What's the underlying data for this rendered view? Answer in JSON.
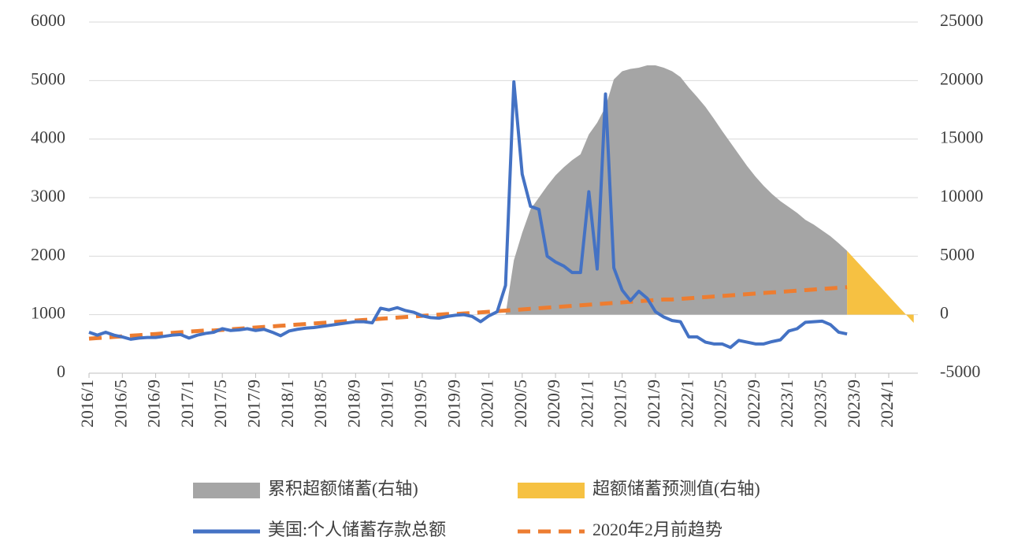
{
  "chart_data": {
    "type": "line",
    "categories": [
      "2016/1",
      null,
      null,
      null,
      "2016/5",
      null,
      null,
      null,
      "2016/9",
      null,
      null,
      null,
      "2017/1",
      null,
      null,
      null,
      "2017/5",
      null,
      null,
      null,
      "2017/9",
      null,
      null,
      null,
      "2018/1",
      null,
      null,
      null,
      "2018/5",
      null,
      null,
      null,
      "2018/9",
      null,
      null,
      null,
      "2019/1",
      null,
      null,
      null,
      "2019/5",
      null,
      null,
      null,
      "2019/9",
      null,
      null,
      null,
      "2020/1",
      null,
      null,
      null,
      "2020/5",
      null,
      null,
      null,
      "2020/9",
      null,
      null,
      null,
      "2021/1",
      null,
      null,
      null,
      "2021/5",
      null,
      null,
      null,
      "2021/9",
      null,
      null,
      null,
      "2022/1",
      null,
      null,
      null,
      "2022/5",
      null,
      null,
      null,
      "2022/9",
      null,
      null,
      null,
      "2023/1",
      null,
      null,
      null,
      "2023/5",
      null,
      null,
      null,
      "2023/9",
      null,
      null,
      null,
      "2024/1",
      null,
      null,
      null
    ],
    "ylim": [
      0,
      6000
    ],
    "yticks": [
      0,
      1000,
      2000,
      3000,
      4000,
      5000,
      6000
    ],
    "y2lim": [
      -5000,
      25000
    ],
    "y2ticks": [
      -5000,
      0,
      5000,
      10000,
      15000,
      20000,
      25000
    ],
    "grid": true,
    "series": [
      {
        "name": "累积超额储蓄(右轴)",
        "type": "area",
        "axis": "y2",
        "color": "#a5a5a5",
        "values": [
          null,
          null,
          null,
          null,
          null,
          null,
          null,
          null,
          null,
          null,
          null,
          null,
          null,
          null,
          null,
          null,
          null,
          null,
          null,
          null,
          null,
          null,
          null,
          null,
          null,
          null,
          null,
          null,
          null,
          null,
          null,
          null,
          null,
          null,
          null,
          null,
          null,
          null,
          null,
          null,
          null,
          null,
          null,
          null,
          null,
          null,
          null,
          null,
          null,
          null,
          0,
          4640,
          7000,
          9000,
          10000,
          11000,
          11900,
          12600,
          13200,
          13700,
          15400,
          16400,
          17750,
          20100,
          20800,
          21000,
          21100,
          21300,
          21300,
          21100,
          20800,
          20300,
          19400,
          18600,
          17750,
          16750,
          15700,
          14700,
          13700,
          12700,
          11800,
          11000,
          10300,
          9700,
          9200,
          8700,
          8100,
          7700,
          7200,
          6700,
          6100,
          5450,
          null,
          null,
          null,
          null,
          null,
          null,
          null,
          null
        ]
      },
      {
        "name": "超额储蓄预测值(右轴)",
        "type": "area",
        "axis": "y2",
        "color": "#f6c142",
        "values": [
          null,
          null,
          null,
          null,
          null,
          null,
          null,
          null,
          null,
          null,
          null,
          null,
          null,
          null,
          null,
          null,
          null,
          null,
          null,
          null,
          null,
          null,
          null,
          null,
          null,
          null,
          null,
          null,
          null,
          null,
          null,
          null,
          null,
          null,
          null,
          null,
          null,
          null,
          null,
          null,
          null,
          null,
          null,
          null,
          null,
          null,
          null,
          null,
          null,
          null,
          null,
          null,
          null,
          null,
          null,
          null,
          null,
          null,
          null,
          null,
          null,
          null,
          null,
          null,
          null,
          null,
          null,
          null,
          null,
          null,
          null,
          null,
          null,
          null,
          null,
          null,
          null,
          null,
          null,
          null,
          null,
          null,
          null,
          null,
          null,
          null,
          null,
          null,
          null,
          null,
          null,
          5450,
          4680,
          3910,
          3140,
          2370,
          1600,
          830,
          60,
          -700
        ]
      },
      {
        "name": "美国:个人储蓄存款总额",
        "type": "line",
        "color": "#4472c4",
        "values": [
          700,
          650,
          700,
          650,
          620,
          580,
          600,
          610,
          610,
          630,
          650,
          660,
          600,
          650,
          680,
          700,
          760,
          730,
          740,
          760,
          730,
          750,
          700,
          640,
          720,
          750,
          770,
          780,
          800,
          820,
          840,
          860,
          880,
          880,
          860,
          1110,
          1080,
          1120,
          1070,
          1040,
          980,
          950,
          940,
          970,
          990,
          1000,
          970,
          880,
          980,
          1050,
          1500,
          4980,
          3400,
          2850,
          2800,
          2000,
          1900,
          1830,
          1720,
          1720,
          3100,
          1780,
          4770,
          1800,
          1420,
          1240,
          1400,
          1280,
          1050,
          960,
          900,
          880,
          620,
          620,
          530,
          500,
          500,
          440,
          560,
          530,
          500,
          500,
          540,
          570,
          720,
          760,
          870,
          880,
          890,
          830,
          700,
          670,
          null,
          null,
          null,
          null,
          null,
          null,
          null,
          null
        ]
      },
      {
        "name": "2020年2月前趋势",
        "type": "line",
        "dashed": true,
        "color": "#ed7d31",
        "values": [
          590,
          600,
          610,
          620,
          630,
          640,
          650,
          660,
          670,
          680,
          690,
          700,
          710,
          720,
          730,
          730,
          740,
          750,
          760,
          770,
          780,
          790,
          800,
          810,
          820,
          830,
          840,
          850,
          860,
          870,
          880,
          890,
          900,
          910,
          920,
          930,
          940,
          950,
          960,
          970,
          980,
          990,
          1000,
          1010,
          1010,
          1020,
          1030,
          1040,
          1050,
          1060,
          1070,
          1080,
          1090,
          1100,
          1110,
          1120,
          1130,
          1140,
          1150,
          1160,
          1170,
          1180,
          1190,
          1200,
          1210,
          1220,
          1230,
          1240,
          1250,
          1260,
          1260,
          1270,
          1280,
          1290,
          1300,
          1310,
          1320,
          1330,
          1340,
          1350,
          1360,
          1370,
          1380,
          1390,
          1400,
          1410,
          1420,
          1430,
          1440,
          1450,
          1460,
          1470,
          null,
          null,
          null,
          null,
          null,
          null,
          null,
          null
        ]
      }
    ]
  }
}
